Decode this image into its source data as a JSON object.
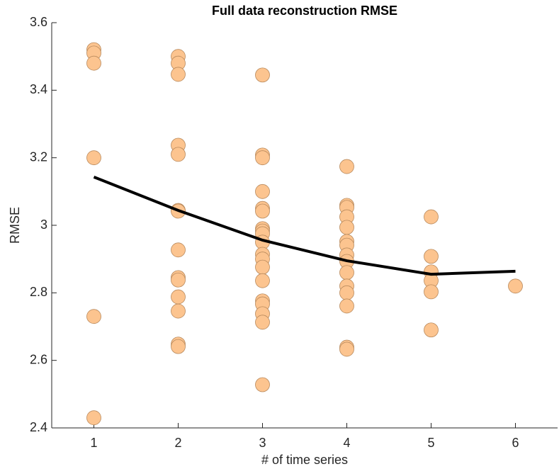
{
  "chart_data": {
    "type": "scatter",
    "title": "Full data reconstruction RMSE",
    "x_label": "# of time series",
    "y_label": "RMSE",
    "xlim": [
      0.5,
      6.5
    ],
    "ylim": [
      2.4,
      3.6
    ],
    "xticks": [
      1,
      2,
      3,
      4,
      5,
      6
    ],
    "yticks": [
      2.4,
      2.6,
      2.8,
      3,
      3.2,
      3.4,
      3.6
    ],
    "series": [
      {
        "type": "scatter",
        "color": "#fcc48f",
        "edge_color": "#b8895c",
        "x": [
          1,
          1,
          1,
          1,
          1,
          1,
          2,
          2,
          2,
          2,
          2,
          2,
          2,
          2,
          2,
          2,
          2,
          2,
          2,
          2,
          3,
          3,
          3,
          3,
          3,
          3,
          3,
          3,
          3,
          3,
          3,
          3,
          3,
          3,
          3,
          3,
          3,
          3,
          3,
          4,
          4,
          4,
          4,
          4,
          4,
          4,
          4,
          4,
          4,
          4,
          4,
          4,
          4,
          4,
          5,
          5,
          5,
          5,
          5,
          5,
          6
        ],
        "values": [
          3.52,
          3.51,
          3.48,
          3.2,
          2.73,
          2.43,
          3.5,
          3.48,
          3.447,
          3.237,
          3.21,
          3.044,
          3.042,
          2.927,
          2.845,
          2.838,
          2.788,
          2.746,
          2.648,
          2.641,
          3.445,
          3.208,
          3.2,
          3.1,
          3.05,
          3.042,
          2.99,
          2.983,
          2.975,
          2.95,
          2.914,
          2.9,
          2.876,
          2.836,
          2.776,
          2.767,
          2.738,
          2.713,
          2.528,
          3.174,
          3.059,
          3.053,
          3.025,
          2.994,
          2.952,
          2.941,
          2.912,
          2.893,
          2.86,
          2.82,
          2.8,
          2.761,
          2.639,
          2.633,
          3.025,
          2.908,
          2.862,
          2.836,
          2.803,
          2.69,
          2.82
        ]
      },
      {
        "type": "line",
        "color": "#000000",
        "x": [
          1,
          2,
          3,
          4,
          5,
          6
        ],
        "values": [
          3.143,
          3.044,
          2.956,
          2.895,
          2.855,
          2.864
        ]
      }
    ]
  }
}
